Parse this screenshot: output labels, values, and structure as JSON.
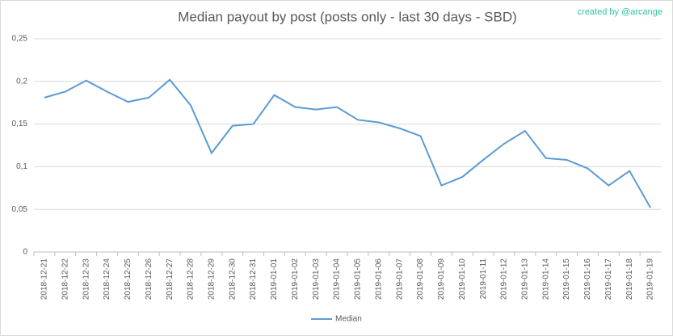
{
  "chart_data": {
    "type": "line",
    "title": "Median payout by post (posts only - last 30 days - SBD)",
    "annotation": "created by @arcange",
    "categories": [
      "2018-12-21",
      "2018-12-22",
      "2018-12-23",
      "2018-12-24",
      "2018-12-25",
      "2018-12-26",
      "2018-12-27",
      "2018-12-28",
      "2018-12-29",
      "2018-12-30",
      "2018-12-31",
      "2019-01-01",
      "2019-01-02",
      "2019-01-03",
      "2019-01-04",
      "2019-01-05",
      "2019-01-06",
      "2019-01-07",
      "2019-01-08",
      "2019-01-09",
      "2019-01-10",
      "2019-01-11",
      "2019-01-12",
      "2019-01-13",
      "2019-01-14",
      "2019-01-15",
      "2019-01-16",
      "2019-01-17",
      "2019-01-18",
      "2019-01-19"
    ],
    "series": [
      {
        "name": "Median",
        "color": "#5b9bd5",
        "values": [
          0.181,
          0.188,
          0.201,
          0.188,
          0.176,
          0.181,
          0.202,
          0.172,
          0.116,
          0.148,
          0.15,
          0.184,
          0.17,
          0.167,
          0.17,
          0.155,
          0.152,
          0.145,
          0.136,
          0.078,
          0.088,
          0.108,
          0.127,
          0.142,
          0.11,
          0.108,
          0.098,
          0.078,
          0.095,
          0.052
        ]
      }
    ],
    "ylim": [
      0,
      0.25
    ],
    "yticks": [
      0,
      {
        "value": 0.05,
        "label": "0,05"
      },
      {
        "value": 0.1,
        "label": "0,1"
      },
      {
        "value": 0.15,
        "label": "0,15"
      },
      {
        "value": 0.2,
        "label": "0,2"
      },
      {
        "value": 0.25,
        "label": "0,25"
      }
    ],
    "grid": true,
    "legend": "bottom"
  }
}
